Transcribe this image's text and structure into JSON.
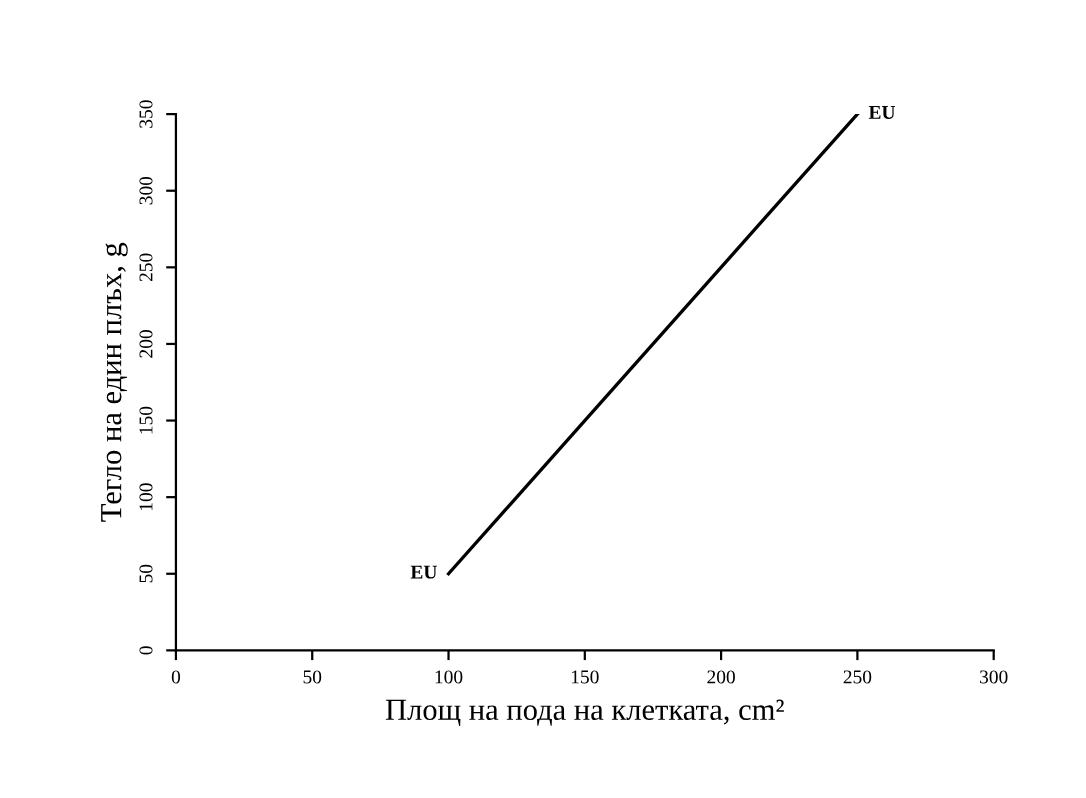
{
  "chart_data": {
    "type": "line",
    "xlabel": "Площ на пода на клетката, cm²",
    "ylabel": "Тегло на един плъх, g",
    "x": [
      100,
      250
    ],
    "series": [
      {
        "color": "#000000",
        "values": [
          50,
          350
        ]
      }
    ],
    "xlim": [
      0,
      300
    ],
    "ylim": [
      0,
      350
    ],
    "xticks": [
      0,
      50,
      100,
      150,
      200,
      250,
      300
    ],
    "yticks": [
      0,
      50,
      100,
      150,
      200,
      250,
      300,
      350
    ],
    "grid": false,
    "marker": "none",
    "line_style": "solid",
    "annotations": [
      {
        "text": "EU",
        "x": 100,
        "y": 50
      },
      {
        "text": "EU",
        "x": 250,
        "y": 350
      }
    ]
  }
}
